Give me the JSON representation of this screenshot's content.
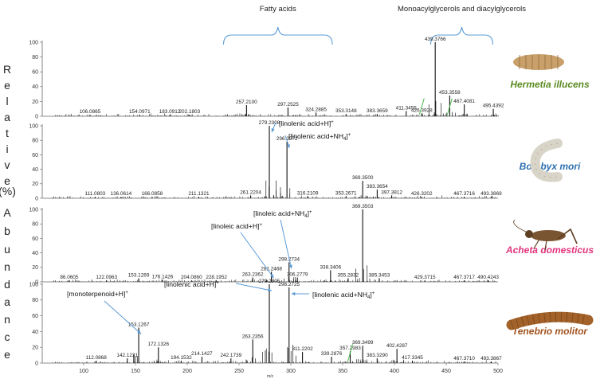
{
  "chart_data": {
    "type": "stacked mass spectra",
    "title": "",
    "xlabel": "m/z",
    "ylabel": "Relative Abundance (%)",
    "ylabel_letters": [
      "R",
      "e",
      "l",
      "a",
      "t",
      "i",
      "v",
      "e",
      "(%)",
      "A",
      "b",
      "u",
      "n",
      "d",
      "a",
      "n",
      "c",
      "e"
    ],
    "xlim": [
      60,
      500
    ],
    "x_ticks": [
      100,
      150,
      200,
      250,
      300,
      350,
      400,
      450,
      500
    ],
    "ylim": [
      0,
      100
    ],
    "y_ticks": [
      0,
      20,
      40,
      60,
      80,
      100
    ],
    "groups": [
      {
        "label": "Fatty acids",
        "range": [
          235,
          340
        ]
      },
      {
        "label": "Monoacylglycerols and diacylglycerols",
        "range": [
          435,
          495
        ]
      }
    ],
    "panels": [
      {
        "species": "Hermetia illucens",
        "color": "#5a8a1f",
        "marker_color": "#3fb53f",
        "peaks": [
          {
            "mz": 106.0865,
            "i": 2
          },
          {
            "mz": 154.0971,
            "i": 2
          },
          {
            "mz": 183.0912,
            "i": 2
          },
          {
            "mz": 202.1803,
            "i": 2
          },
          {
            "mz": 257.21,
            "i": 15
          },
          {
            "mz": 297.2525,
            "i": 12
          },
          {
            "mz": 324.2885,
            "i": 5
          },
          {
            "mz": 353.3148,
            "i": 3
          },
          {
            "mz": 383.3659,
            "i": 3
          },
          {
            "mz": 411.3455,
            "i": 7
          },
          {
            "mz": 426.3928,
            "i": 4
          },
          {
            "mz": 439.3766,
            "i": 100
          },
          {
            "mz": 453.3558,
            "i": 28
          },
          {
            "mz": 467.4081,
            "i": 16
          },
          {
            "mz": 495.4392,
            "i": 10
          }
        ],
        "annotations": [],
        "markers": [
          426.3928,
          453.3558
        ]
      },
      {
        "species": "Bombyx mori",
        "color": "#2f6fb0",
        "marker_color": "#3fb53f",
        "peaks": [
          {
            "mz": 111.0803,
            "i": 2
          },
          {
            "mz": 136.0614,
            "i": 2
          },
          {
            "mz": 166.0858,
            "i": 2
          },
          {
            "mz": 211.1321,
            "i": 2
          },
          {
            "mz": 261.2204,
            "i": 4
          },
          {
            "mz": 279.2308,
            "i": 100
          },
          {
            "mz": 296.2572,
            "i": 78
          },
          {
            "mz": 316.2109,
            "i": 3
          },
          {
            "mz": 353.2671,
            "i": 3
          },
          {
            "mz": 369.35,
            "i": 24
          },
          {
            "mz": 383.3654,
            "i": 12
          },
          {
            "mz": 397.3812,
            "i": 4
          },
          {
            "mz": 426.3202,
            "i": 2
          },
          {
            "mz": 467.3716,
            "i": 2
          },
          {
            "mz": 493.3869,
            "i": 2
          }
        ],
        "annotations": [
          {
            "text": "[linolenic acid+H]",
            "sup": "+",
            "peak": 279.2308
          },
          {
            "text": "[linolenic acid+NH",
            "sub": "4",
            "close": "]",
            "sup": "+",
            "peak": 296.2572
          }
        ],
        "markers": []
      },
      {
        "species": "Acheta domesticus",
        "color": "#e2347d",
        "marker_color": "#3fb53f",
        "peaks": [
          {
            "mz": 86.0605,
            "i": 2
          },
          {
            "mz": 122.0963,
            "i": 2
          },
          {
            "mz": 153.1269,
            "i": 5
          },
          {
            "mz": 176.1426,
            "i": 3
          },
          {
            "mz": 204.086,
            "i": 2
          },
          {
            "mz": 228.1952,
            "i": 2
          },
          {
            "mz": 263.2362,
            "i": 6
          },
          {
            "mz": 281.2468,
            "i": 14
          },
          {
            "mz": 298.2734,
            "i": 27
          },
          {
            "mz": 306.2779,
            "i": 6
          },
          {
            "mz": 338.3406,
            "i": 16
          },
          {
            "mz": 355.2832,
            "i": 5
          },
          {
            "mz": 369.3503,
            "i": 100
          },
          {
            "mz": 385.3453,
            "i": 5
          },
          {
            "mz": 429.3715,
            "i": 2
          },
          {
            "mz": 467.3717,
            "i": 2
          },
          {
            "mz": 490.4243,
            "i": 2
          }
        ],
        "annotations": [
          {
            "text": "[linoleic acid+NH",
            "sub": "4",
            "close": "]",
            "sup": "+",
            "peak": 298.2734
          },
          {
            "text": "[linoleic acid+H]",
            "sup": "+",
            "peak": 281.2468
          }
        ],
        "markers": []
      },
      {
        "species": "Tenebrio molitor",
        "color": "#a0521d",
        "marker_color": "#3fb53f",
        "peaks": [
          {
            "mz": 112.0868,
            "i": 3
          },
          {
            "mz": 142.1221,
            "i": 6
          },
          {
            "mz": 153.1267,
            "i": 45
          },
          {
            "mz": 172.1326,
            "i": 20
          },
          {
            "mz": 194.1532,
            "i": 3
          },
          {
            "mz": 214.1427,
            "i": 8
          },
          {
            "mz": 242.1739,
            "i": 6
          },
          {
            "mz": 263.2356,
            "i": 30
          },
          {
            "mz": 279.2305,
            "i": 100
          },
          {
            "mz": 298.2725,
            "i": 96
          },
          {
            "mz": 311.2202,
            "i": 14
          },
          {
            "mz": 339.2876,
            "i": 8
          },
          {
            "mz": 357.2983,
            "i": 15
          },
          {
            "mz": 369.3499,
            "i": 22
          },
          {
            "mz": 383.329,
            "i": 6
          },
          {
            "mz": 402.4287,
            "i": 18
          },
          {
            "mz": 417.3345,
            "i": 3
          },
          {
            "mz": 467.371,
            "i": 2
          },
          {
            "mz": 493.3867,
            "i": 2
          }
        ],
        "annotations": [
          {
            "text": "[linolenic acid+H]",
            "sup": "+",
            "peak": 279.2305
          },
          {
            "text": "[linolenic acid+NH",
            "sub": "4",
            "close": "]",
            "sup": "+",
            "peak": 298.2725
          },
          {
            "text": "[monoterpenoid+H]",
            "sup": "+",
            "peak": 153.1267
          }
        ],
        "markers": [
          357.2983
        ]
      }
    ]
  }
}
